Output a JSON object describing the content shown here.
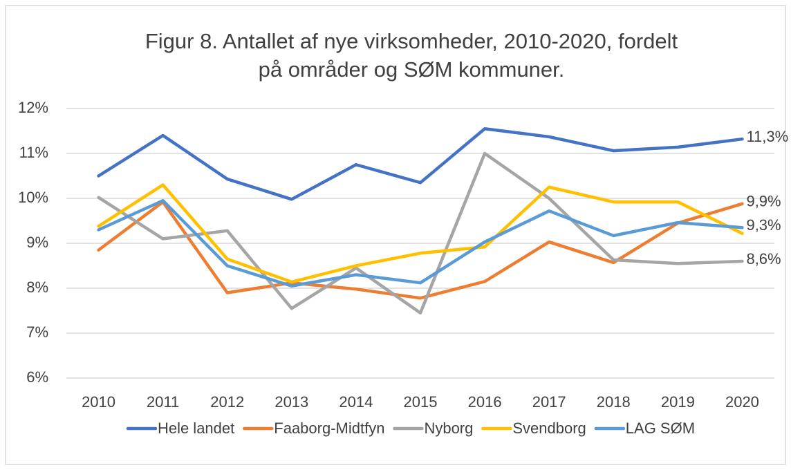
{
  "chart_data": {
    "type": "line",
    "title": [
      "Figur 8. Antallet af nye virksomheder, 2010-2020, fordelt",
      "på områder og SØM kommuner."
    ],
    "x": [
      "2010",
      "2011",
      "2012",
      "2013",
      "2014",
      "2015",
      "2016",
      "2017",
      "2018",
      "2019",
      "2020"
    ],
    "ylim": [
      6,
      12
    ],
    "yticks": [
      {
        "value": 6,
        "label": "6%"
      },
      {
        "value": 7,
        "label": "7%"
      },
      {
        "value": 8,
        "label": "8%"
      },
      {
        "value": 9,
        "label": "9%"
      },
      {
        "value": 10,
        "label": "10%"
      },
      {
        "value": 11,
        "label": "11%"
      },
      {
        "value": 12,
        "label": "12%"
      }
    ],
    "grid": true,
    "legend": "bottom",
    "series": [
      {
        "name": "Hele landet",
        "color": "#4472c4",
        "values": [
          10.5,
          11.4,
          10.43,
          9.98,
          10.75,
          10.35,
          11.55,
          11.37,
          11.06,
          11.14,
          11.32
        ],
        "value_labels": [
          null,
          null,
          null,
          null,
          null,
          null,
          null,
          null,
          null,
          null,
          "11,3%"
        ]
      },
      {
        "name": "Faaborg-Midtfyn",
        "color": "#ed7d31",
        "values": [
          8.85,
          9.92,
          7.9,
          8.12,
          7.98,
          7.78,
          8.15,
          9.03,
          8.57,
          9.45,
          9.88
        ],
        "value_labels": [
          null,
          null,
          null,
          null,
          null,
          null,
          null,
          null,
          null,
          null,
          "9,9%"
        ]
      },
      {
        "name": "Nyborg",
        "color": "#a5a5a5",
        "values": [
          10.02,
          9.1,
          9.28,
          7.55,
          8.45,
          7.45,
          11.0,
          10.0,
          8.63,
          8.55,
          8.6
        ],
        "value_labels": [
          null,
          null,
          null,
          null,
          null,
          null,
          null,
          null,
          null,
          null,
          "8,6%"
        ]
      },
      {
        "name": "Svendborg",
        "color": "#ffc000",
        "values": [
          9.38,
          10.3,
          8.65,
          8.14,
          8.5,
          8.78,
          8.92,
          10.25,
          9.92,
          9.92,
          9.22
        ]
      },
      {
        "name": "LAG SØM",
        "color": "#5b9bd5",
        "values": [
          9.3,
          9.95,
          8.5,
          8.05,
          8.3,
          8.12,
          9.03,
          9.72,
          9.17,
          9.46,
          9.35
        ],
        "value_labels": [
          null,
          null,
          null,
          null,
          null,
          null,
          null,
          null,
          null,
          null,
          "9,3%"
        ]
      }
    ]
  }
}
